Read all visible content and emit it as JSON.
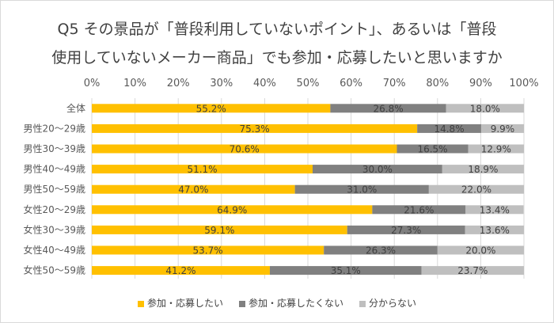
{
  "chart_data": {
    "type": "bar",
    "orientation": "horizontal",
    "stacked": true,
    "title": [
      "Q5 その景品が「普段利用していないポイント」、あるいは「普段",
      "使用していないメーカー商品」でも参加・応募したいと思いますか"
    ],
    "categories": [
      "全体",
      "男性20～29歳",
      "男性30～39歳",
      "男性40～49歳",
      "男性50～59歳",
      "女性20～29歳",
      "女性30～39歳",
      "女性40～49歳",
      "女性50～59歳"
    ],
    "series": [
      {
        "name": "参加・応募したい",
        "color": "#ffc000",
        "values": [
          55.2,
          75.3,
          70.6,
          51.1,
          47.0,
          64.9,
          59.1,
          53.7,
          41.2
        ]
      },
      {
        "name": "参加・応募したくない",
        "color": "#808080",
        "values": [
          26.8,
          14.8,
          16.5,
          30.0,
          31.0,
          21.6,
          27.3,
          26.3,
          35.1
        ]
      },
      {
        "name": "分からない",
        "color": "#bfbfbf",
        "values": [
          18.0,
          9.9,
          12.9,
          18.9,
          22.0,
          13.4,
          13.6,
          20.0,
          23.7
        ]
      }
    ],
    "xlim": [
      0,
      100
    ],
    "xticks": [
      "0%",
      "10%",
      "20%",
      "30%",
      "40%",
      "50%",
      "60%",
      "70%",
      "80%",
      "90%",
      "100%"
    ],
    "grid": true,
    "legend": "bottom",
    "data_labels": true
  }
}
